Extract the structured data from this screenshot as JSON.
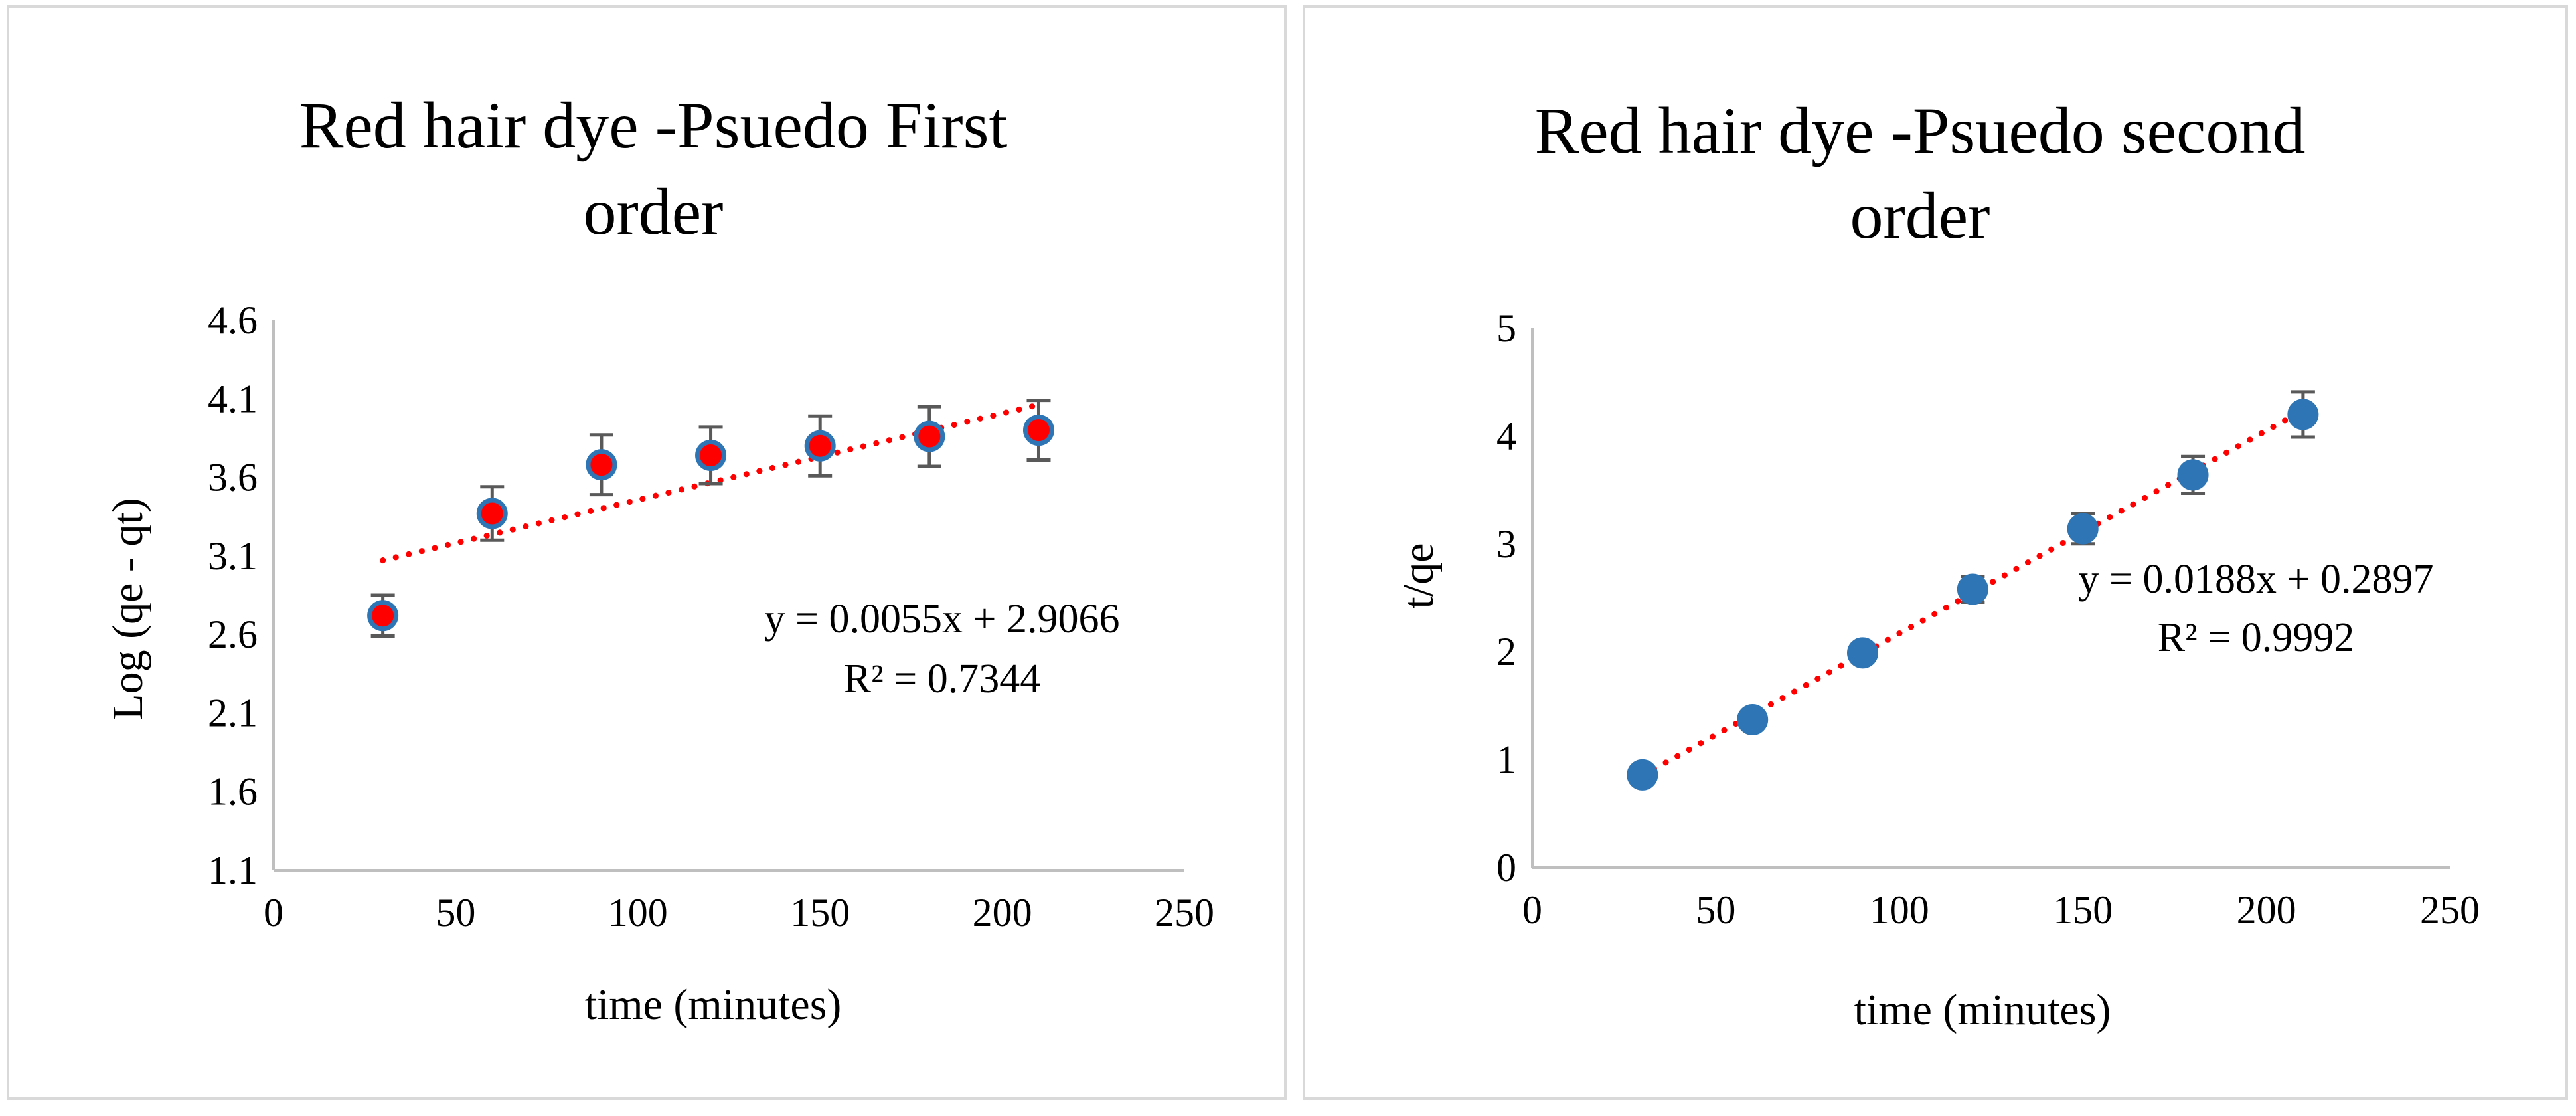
{
  "chart_data": [
    {
      "type": "scatter",
      "title_lines": [
        "Red hair dye -Psuedo First",
        "order"
      ],
      "xlabel": "time (minutes)",
      "ylabel": "Log (qe - qt)",
      "xlim": [
        0,
        250
      ],
      "ylim": [
        1.1,
        4.6
      ],
      "x_ticks": [
        0,
        50,
        100,
        150,
        200,
        250
      ],
      "y_ticks": [
        1.1,
        1.6,
        2.1,
        2.6,
        3.1,
        3.6,
        4.1,
        4.6
      ],
      "x_tick_labels": [
        "0",
        "50",
        "100",
        "150",
        "200",
        "250"
      ],
      "y_tick_labels": [
        "1.1",
        "1.6",
        "2.1",
        "2.6",
        "3.1",
        "3.6",
        "4.1",
        "4.6"
      ],
      "grid": false,
      "series": [
        {
          "name": "Red hair dye",
          "x": [
            30,
            60,
            90,
            120,
            150,
            180,
            210
          ],
          "y": [
            2.72,
            3.37,
            3.68,
            3.74,
            3.8,
            3.86,
            3.9
          ],
          "error": [
            0.13,
            0.17,
            0.19,
            0.18,
            0.19,
            0.19,
            0.19
          ],
          "marker_fill": "#ff0000",
          "marker_edge": "#2e75b6"
        }
      ],
      "trendline": {
        "slope": 0.0055,
        "intercept": 2.9066,
        "x_range": [
          30,
          210
        ],
        "color": "#ff0000",
        "style": "dotted",
        "equation_label": "y = 0.0055x + 2.9066",
        "r2_label": "R² = 0.7344"
      },
      "error_bar_color": "#595959"
    },
    {
      "type": "scatter",
      "title_lines": [
        "Red hair dye -Psuedo second",
        "order"
      ],
      "xlabel": "time (minutes)",
      "ylabel": "t/qe",
      "xlim": [
        0,
        250
      ],
      "ylim": [
        0,
        5
      ],
      "x_ticks": [
        0,
        50,
        100,
        150,
        200,
        250
      ],
      "y_ticks": [
        0,
        1,
        2,
        3,
        4,
        5
      ],
      "x_tick_labels": [
        "0",
        "50",
        "100",
        "150",
        "200",
        "250"
      ],
      "y_tick_labels": [
        "0",
        "1",
        "2",
        "3",
        "4",
        "5"
      ],
      "grid": false,
      "series": [
        {
          "name": "Red hair dye",
          "x": [
            30,
            60,
            90,
            120,
            150,
            180,
            210
          ],
          "y": [
            0.86,
            1.37,
            1.99,
            2.58,
            3.14,
            3.64,
            4.2
          ],
          "error": [
            0.04,
            0.05,
            0.08,
            0.12,
            0.14,
            0.17,
            0.21
          ],
          "marker_fill": "#2e75b6",
          "marker_edge": "#2e75b6"
        }
      ],
      "trendline": {
        "slope": 0.0188,
        "intercept": 0.2897,
        "x_range": [
          30,
          210
        ],
        "color": "#ff0000",
        "style": "dotted",
        "equation_label": "y = 0.0188x + 0.2897",
        "r2_label": "R² = 0.9992"
      },
      "error_bar_color": "#595959"
    }
  ]
}
